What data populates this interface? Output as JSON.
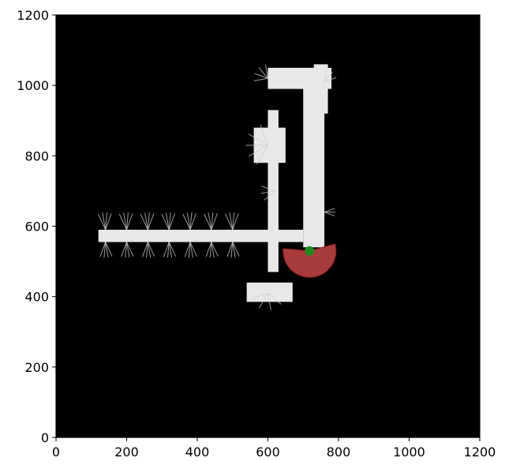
{
  "chart_data": {
    "type": "heatmap",
    "title": "",
    "xlabel": "",
    "ylabel": "",
    "xlim": [
      0,
      1200
    ],
    "ylim": [
      0,
      1200
    ],
    "x_ticks": [
      "0",
      "200",
      "400",
      "600",
      "800",
      "1000",
      "1200"
    ],
    "y_ticks": [
      "0",
      "200",
      "400",
      "600",
      "800",
      "1000",
      "1200"
    ],
    "grid": false,
    "background_color": "#000000",
    "map_color": "#e8e8e8",
    "explored_regions": [
      {
        "name": "horizontal-corridor",
        "x": [
          120,
          700
        ],
        "y": [
          555,
          590
        ]
      },
      {
        "name": "vertical-corridor-left",
        "x": [
          600,
          630
        ],
        "y": [
          470,
          930
        ]
      },
      {
        "name": "vertical-corridor-right",
        "x": [
          700,
          760
        ],
        "y": [
          540,
          1000
        ]
      },
      {
        "name": "top-corridor",
        "x": [
          600,
          780
        ],
        "y": [
          990,
          1050
        ]
      },
      {
        "name": "top-right-stub",
        "x": [
          730,
          770
        ],
        "y": [
          920,
          1060
        ]
      },
      {
        "name": "lower-room",
        "x": [
          540,
          670
        ],
        "y": [
          385,
          440
        ]
      },
      {
        "name": "left-bulge",
        "x": [
          560,
          650
        ],
        "y": [
          780,
          880
        ]
      }
    ],
    "robot_position": {
      "x": 718,
      "y": 530,
      "color": "#1e8c1e"
    },
    "sensor_fov": {
      "center_x": 718,
      "center_y": 530,
      "radius": 75,
      "start_angle_deg": 175,
      "end_angle_deg": 375,
      "color": "#e05050"
    }
  }
}
